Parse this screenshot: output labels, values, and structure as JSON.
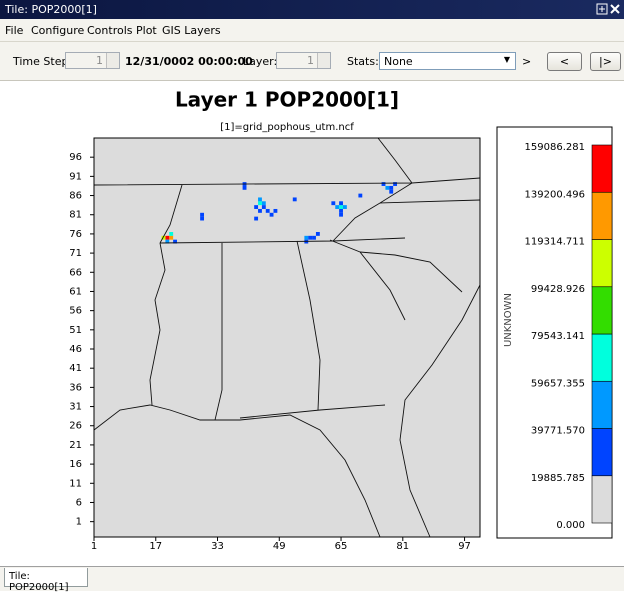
{
  "window": {
    "title": "Tile: POP2000[1]"
  },
  "menu": [
    "File",
    "Configure",
    "Controls",
    "Plot",
    "GIS Layers"
  ],
  "toolbar": {
    "time_step_label": "Time Step:",
    "time_step": 1,
    "date": "12/31/0002 00:00:00",
    "layer_label": "Layer:",
    "layer": 1,
    "stats_label": "Stats:",
    "stats": "None",
    "more": ">",
    "prev": "<",
    "next": "|>"
  },
  "chart_data": {
    "type": "tile",
    "title": "Layer 1 POP2000[1]",
    "subtitle": "[1]=grid_pophous_utm.ncf",
    "xlim": [
      1,
      101
    ],
    "ylim": [
      -3,
      101
    ],
    "xticks": [
      1,
      17,
      33,
      49,
      65,
      81,
      97
    ],
    "yticks": [
      1,
      6,
      11,
      16,
      21,
      26,
      31,
      36,
      41,
      46,
      51,
      56,
      61,
      66,
      71,
      76,
      81,
      86,
      91,
      96
    ],
    "background": "#dcdcdc",
    "legend": {
      "label": "UNKNOWN",
      "levels": [
        {
          "value": 0,
          "label": "0.000"
        },
        19885.785,
        {
          "value": 39771.57,
          "label": "39771.570"
        },
        59657.355,
        79543.141,
        99428.926,
        119314.711,
        139200.496,
        159086.281
      ],
      "colors": [
        "#dcdcdc",
        "#0044ff",
        "#0099ff",
        "#00ffdd",
        "#33dd00",
        "#ccff00",
        "#ff9900",
        "#ff0000"
      ]
    },
    "cells": {
      "x": [
        20,
        21,
        19,
        21,
        20,
        22,
        44,
        45,
        44,
        43,
        45,
        46,
        47,
        44,
        65,
        64,
        66,
        65,
        65,
        65,
        63,
        56,
        57,
        56,
        58,
        59,
        77,
        76,
        78,
        79,
        78,
        40,
        40,
        29,
        29,
        53,
        70,
        43,
        48
      ],
      "y": [
        75,
        75,
        75,
        76,
        74,
        74,
        84,
        84,
        85,
        83,
        83,
        82,
        81,
        82,
        83,
        83,
        83,
        84,
        82,
        81,
        84,
        75,
        75,
        74,
        75,
        76,
        88,
        89,
        88,
        89,
        87,
        89,
        88,
        80,
        81,
        85,
        86,
        80,
        82
      ],
      "values": [
        150000,
        130000,
        100000,
        60000,
        50000,
        30000,
        70000,
        50000,
        45000,
        30000,
        30000,
        25000,
        25000,
        25000,
        70000,
        45000,
        40000,
        30000,
        30000,
        25000,
        25000,
        40000,
        30000,
        25000,
        25000,
        25000,
        40000,
        30000,
        25000,
        25000,
        25000,
        25000,
        25000,
        25000,
        25000,
        25000,
        25000,
        25000,
        25000
      ]
    }
  },
  "tab": "Tile: POP2000[1]"
}
